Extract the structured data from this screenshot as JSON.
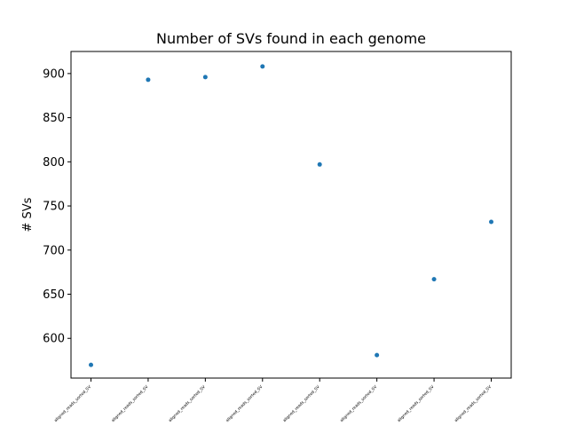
{
  "chart_data": {
    "type": "scatter",
    "title": "Number of SVs found in each genome",
    "xlabel": "",
    "ylabel": "# SVs",
    "categories": [
      "aligned_reads_sorted_SV",
      "aligned_reads_sorted_SV",
      "aligned_reads_sorted_SV",
      "aligned_reads_sorted_SV",
      "aligned_reads_sorted_SV",
      "aligned_reads_sorted_SV",
      "aligned_reads_sorted_SV",
      "aligned_reads_sorted_SV"
    ],
    "values": [
      570,
      893,
      896,
      908,
      797,
      581,
      667,
      732
    ],
    "ylim": [
      555,
      925
    ],
    "yticks": [
      600,
      650,
      700,
      750,
      800,
      850,
      900
    ],
    "grid": false,
    "legend": "none",
    "point_color": "#1f77b4"
  }
}
